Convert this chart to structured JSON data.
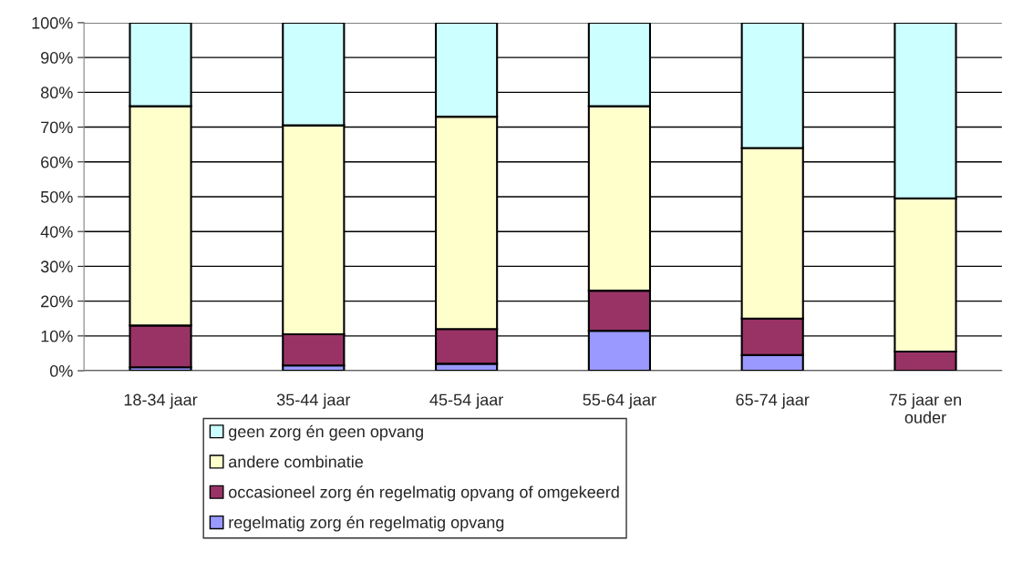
{
  "chart_data": {
    "type": "bar",
    "stacked": true,
    "categories": [
      "18-34 jaar",
      "35-44 jaar",
      "45-54 jaar",
      "55-64 jaar",
      "65-74 jaar",
      "75 jaar en\nouder"
    ],
    "series": [
      {
        "name": "regelmatig zorg én regelmatig opvang",
        "color": "#9999ff",
        "values": [
          1,
          1.5,
          2,
          11.5,
          4.5,
          null
        ]
      },
      {
        "name": "occasioneel zorg én regelmatig opvang of omgekeerd",
        "color": "#993366",
        "values": [
          12,
          9,
          10,
          11.5,
          10.5,
          5.5
        ]
      },
      {
        "name": "andere combinatie",
        "color": "#ffffcc",
        "values": [
          63,
          60,
          61,
          53,
          49,
          44
        ]
      },
      {
        "name": "geen zorg én geen opvang",
        "color": "#ccffff",
        "values": [
          24,
          29.5,
          27,
          24,
          36,
          50.5
        ]
      }
    ],
    "ylim": [
      0,
      100
    ],
    "yticks": [
      {
        "value": 0,
        "label": "0%"
      },
      {
        "value": 10,
        "label": "10%"
      },
      {
        "value": 20,
        "label": "20%"
      },
      {
        "value": 30,
        "label": "30%"
      },
      {
        "value": 40,
        "label": "40%"
      },
      {
        "value": 50,
        "label": "50%"
      },
      {
        "value": 60,
        "label": "60%"
      },
      {
        "value": 70,
        "label": "70%"
      },
      {
        "value": 80,
        "label": "80%"
      },
      {
        "value": 90,
        "label": "90%"
      },
      {
        "value": 100,
        "label": "100%"
      }
    ],
    "grid": "y",
    "legend": "bottom"
  }
}
